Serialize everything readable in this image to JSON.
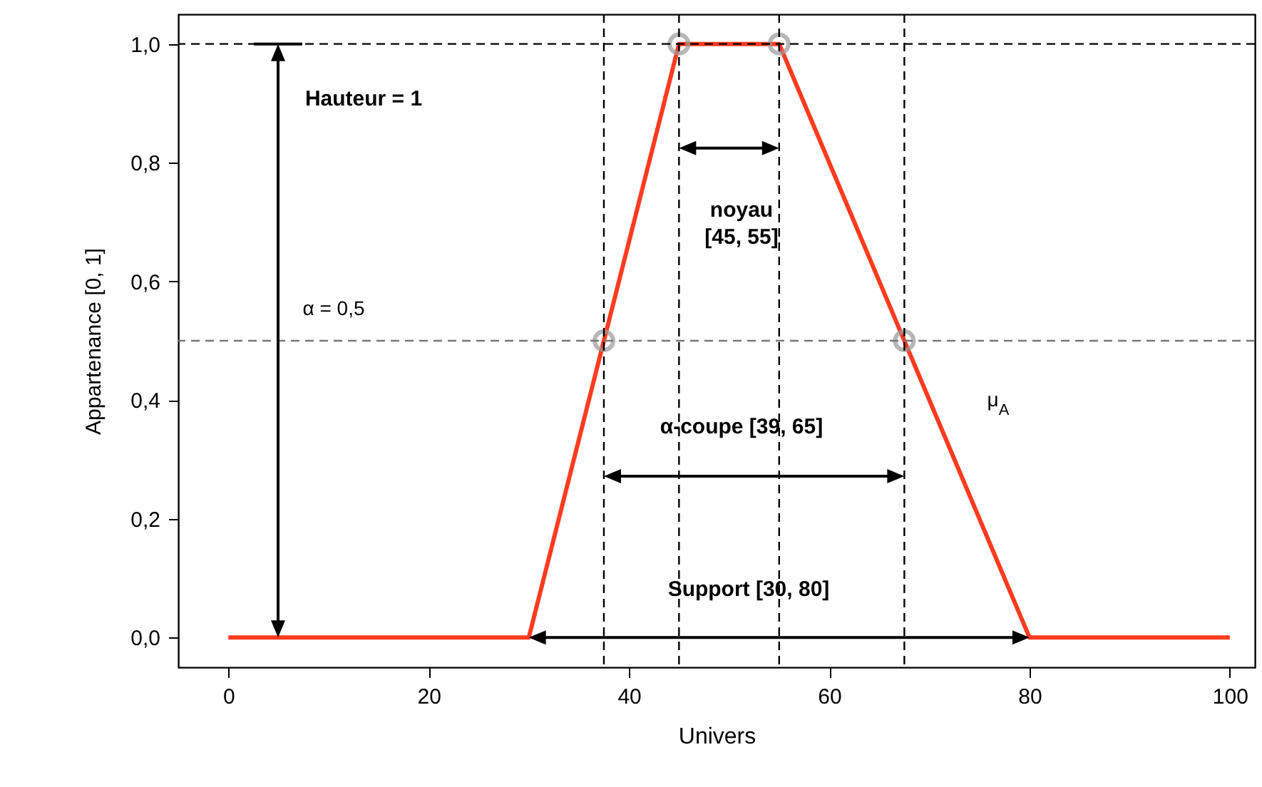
{
  "chart_data": {
    "type": "line",
    "xlabel": "Univers",
    "ylabel": "Appartenance [0, 1]",
    "xlim": [
      -5,
      102.5
    ],
    "ylim": [
      -0.05,
      1.05
    ],
    "xticks": [
      0,
      20,
      40,
      60,
      80,
      100
    ],
    "yticks": [
      {
        "value": 0,
        "label": "0,0"
      },
      {
        "value": 0.2,
        "label": "0,2"
      },
      {
        "value": 0.4,
        "label": "0,4"
      },
      {
        "value": 0.6,
        "label": "0,6"
      },
      {
        "value": 0.8,
        "label": "0,8"
      },
      {
        "value": 1,
        "label": "1,0"
      }
    ],
    "series": [
      {
        "color": "#ff3b1f",
        "x": [
          0,
          30,
          45,
          55,
          80,
          100
        ],
        "values": [
          0,
          0,
          1,
          1,
          0,
          0
        ]
      },
      {
        "type": "scatter",
        "color": "#999999",
        "marker": "circle",
        "x": [
          37.5,
          45,
          55,
          67.5
        ],
        "values": [
          0.5,
          1,
          1,
          0.5
        ]
      }
    ],
    "ref_lines": [
      {
        "axis": "y",
        "value": 0.5,
        "color": "#777777",
        "line_style": "dashed"
      },
      {
        "axis": "y",
        "value": 1,
        "color": "#000000",
        "line_style": "dashed"
      },
      {
        "axis": "x",
        "value": 37.5,
        "color": "#000000",
        "line_style": "dashed"
      },
      {
        "axis": "x",
        "value": 45,
        "color": "#000000",
        "line_style": "dashed"
      },
      {
        "axis": "x",
        "value": 55,
        "color": "#000000",
        "line_style": "dashed"
      },
      {
        "axis": "x",
        "value": 67.5,
        "color": "#000000",
        "line_style": "dashed"
      }
    ],
    "annotations": [
      "Hauteur = 1",
      "noyau\n[45, 55]",
      "α = 0,5",
      "α-coupe [39, 65]",
      "Support [30, 80]",
      "μ$_{A}$"
    ],
    "grid": false
  }
}
